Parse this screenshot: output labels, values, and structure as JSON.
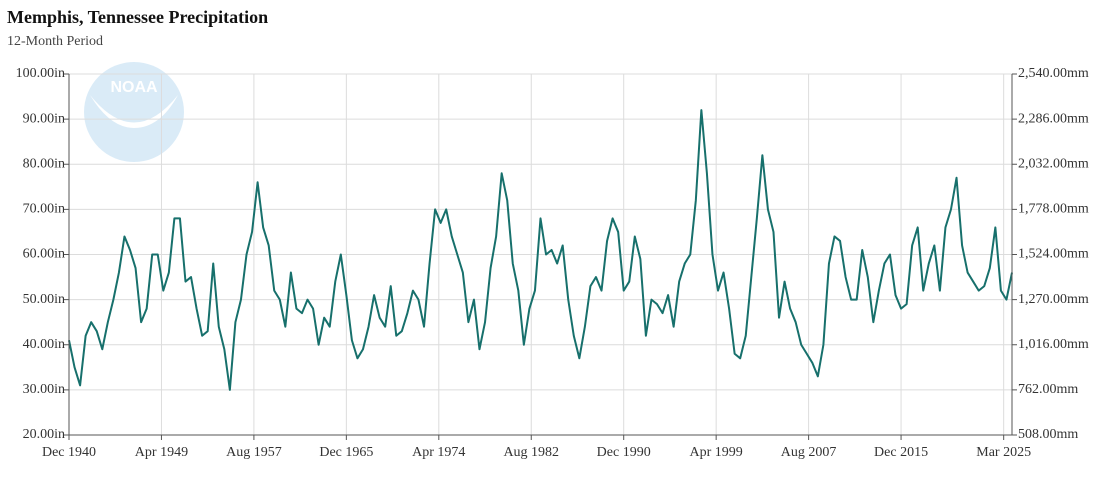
{
  "chart_data": {
    "type": "line",
    "title": "Memphis, Tennessee Precipitation",
    "subtitle": "12-Month Period",
    "logo": "NOAA",
    "x": [
      "1940-12",
      "1941-06",
      "1941-12",
      "1942-06",
      "1942-12",
      "1943-06",
      "1943-12",
      "1944-06",
      "1944-12",
      "1945-06",
      "1945-12",
      "1946-06",
      "1946-12",
      "1947-06",
      "1947-12",
      "1948-06",
      "1948-12",
      "1949-06",
      "1949-12",
      "1950-06",
      "1950-12",
      "1951-06",
      "1951-12",
      "1952-06",
      "1952-12",
      "1953-06",
      "1953-12",
      "1954-06",
      "1954-12",
      "1955-06",
      "1955-12",
      "1956-06",
      "1956-12",
      "1957-06",
      "1957-12",
      "1958-06",
      "1958-12",
      "1959-06",
      "1959-12",
      "1960-06",
      "1960-12",
      "1961-06",
      "1961-12",
      "1962-06",
      "1962-12",
      "1963-06",
      "1963-12",
      "1964-06",
      "1964-12",
      "1965-06",
      "1965-12",
      "1966-06",
      "1966-12",
      "1967-06",
      "1967-12",
      "1968-06",
      "1968-12",
      "1969-06",
      "1969-12",
      "1970-06",
      "1970-12",
      "1971-06",
      "1971-12",
      "1972-06",
      "1972-12",
      "1973-06",
      "1973-12",
      "1974-06",
      "1974-12",
      "1975-06",
      "1975-12",
      "1976-06",
      "1976-12",
      "1977-06",
      "1977-12",
      "1978-06",
      "1978-12",
      "1979-06",
      "1979-12",
      "1980-06",
      "1980-12",
      "1981-06",
      "1981-12",
      "1982-06",
      "1982-12",
      "1983-06",
      "1983-12",
      "1984-06",
      "1984-12",
      "1985-06",
      "1985-12",
      "1986-06",
      "1986-12",
      "1987-06",
      "1987-12",
      "1988-06",
      "1988-12",
      "1989-06",
      "1989-12",
      "1990-06",
      "1990-12",
      "1991-06",
      "1991-12",
      "1992-06",
      "1992-12",
      "1993-06",
      "1993-12",
      "1994-06",
      "1994-12",
      "1995-06",
      "1995-12",
      "1996-06",
      "1996-12",
      "1997-06",
      "1997-12",
      "1998-06",
      "1998-12",
      "1999-06",
      "1999-12",
      "2000-06",
      "2000-12",
      "2001-06",
      "2001-12",
      "2002-06",
      "2002-12",
      "2003-06",
      "2003-12",
      "2004-06",
      "2004-12",
      "2005-06",
      "2005-12",
      "2006-06",
      "2006-12",
      "2007-06",
      "2007-12",
      "2008-06",
      "2008-12",
      "2009-06",
      "2009-12",
      "2010-06",
      "2010-12",
      "2011-06",
      "2011-12",
      "2012-06",
      "2012-12",
      "2013-06",
      "2013-12",
      "2014-06",
      "2014-12",
      "2015-06",
      "2015-12",
      "2016-06",
      "2016-12",
      "2017-06",
      "2017-12",
      "2018-06",
      "2018-12",
      "2019-06",
      "2019-12",
      "2020-06",
      "2020-12",
      "2021-06",
      "2021-12",
      "2022-06",
      "2022-12",
      "2023-06",
      "2023-12",
      "2024-06",
      "2024-12",
      "2025-06",
      "2025-12"
    ],
    "series": [
      {
        "name": "Precipitation",
        "color": "#17706c",
        "values": [
          41,
          35,
          31,
          42,
          45,
          43,
          39,
          45,
          50,
          56,
          64,
          61,
          57,
          45,
          48,
          60,
          60,
          52,
          56,
          68,
          68,
          54,
          55,
          48,
          42,
          43,
          58,
          44,
          39,
          30,
          45,
          50,
          60,
          65,
          76,
          66,
          62,
          52,
          50,
          44,
          56,
          48,
          47,
          50,
          48,
          40,
          46,
          44,
          54,
          60,
          51,
          41,
          37,
          39,
          44,
          51,
          46,
          44,
          53,
          42,
          43,
          47,
          52,
          50,
          44,
          58,
          70,
          67,
          70,
          64,
          60,
          56,
          45,
          50,
          39,
          45,
          57,
          64,
          78,
          72,
          58,
          52,
          40,
          48,
          52,
          68,
          60,
          61,
          58,
          62,
          50,
          42,
          37,
          44,
          53,
          55,
          52,
          63,
          68,
          65,
          52,
          54,
          64,
          59,
          42,
          50,
          49,
          47,
          51,
          44,
          54,
          58,
          60,
          72,
          92,
          78,
          60,
          52,
          56,
          48,
          38,
          37,
          42,
          55,
          68,
          82,
          70,
          65,
          46,
          54,
          48,
          45,
          40,
          38,
          36,
          33,
          40,
          58,
          64,
          63,
          55,
          50,
          50,
          61,
          55,
          45,
          52,
          58,
          60,
          51,
          48,
          49,
          62,
          66,
          52,
          58,
          62,
          52,
          66,
          70,
          77,
          62,
          56,
          54,
          52,
          53,
          57,
          66,
          52,
          50,
          56
        ]
      }
    ],
    "xlim": [
      "1940-12",
      "2025-12"
    ],
    "xticks": [
      {
        "value": "1940-12",
        "label": "Dec 1940"
      },
      {
        "value": "1949-04",
        "label": "Apr 1949"
      },
      {
        "value": "1957-08",
        "label": "Aug 1957"
      },
      {
        "value": "1965-12",
        "label": "Dec 1965"
      },
      {
        "value": "1974-04",
        "label": "Apr 1974"
      },
      {
        "value": "1982-08",
        "label": "Aug 1982"
      },
      {
        "value": "1990-12",
        "label": "Dec 1990"
      },
      {
        "value": "1999-04",
        "label": "Apr 1999"
      },
      {
        "value": "2007-08",
        "label": "Aug 2007"
      },
      {
        "value": "2015-12",
        "label": "Dec 2015"
      },
      {
        "value": "2025-03",
        "label": "Mar 2025"
      }
    ],
    "ylim": [
      20,
      100
    ],
    "yticks": [
      {
        "value": 20,
        "label": "20.00in"
      },
      {
        "value": 30,
        "label": "30.00in"
      },
      {
        "value": 40,
        "label": "40.00in"
      },
      {
        "value": 50,
        "label": "50.00in"
      },
      {
        "value": 60,
        "label": "60.00in"
      },
      {
        "value": 70,
        "label": "70.00in"
      },
      {
        "value": 80,
        "label": "80.00in"
      },
      {
        "value": 90,
        "label": "90.00in"
      },
      {
        "value": 100,
        "label": "100.00in"
      }
    ],
    "y2lim": [
      508,
      2540
    ],
    "y2ticks": [
      {
        "value": 508,
        "label": "508.00mm"
      },
      {
        "value": 762,
        "label": "762.00mm"
      },
      {
        "value": 1016,
        "label": "1,016.00mm"
      },
      {
        "value": 1270,
        "label": "1,270.00mm"
      },
      {
        "value": 1524,
        "label": "1,524.00mm"
      },
      {
        "value": 1778,
        "label": "1,778.00mm"
      },
      {
        "value": 2032,
        "label": "2,032.00mm"
      },
      {
        "value": 2286,
        "label": "2,286.00mm"
      },
      {
        "value": 2540,
        "label": "2,540.00mm"
      }
    ],
    "grid": true
  }
}
